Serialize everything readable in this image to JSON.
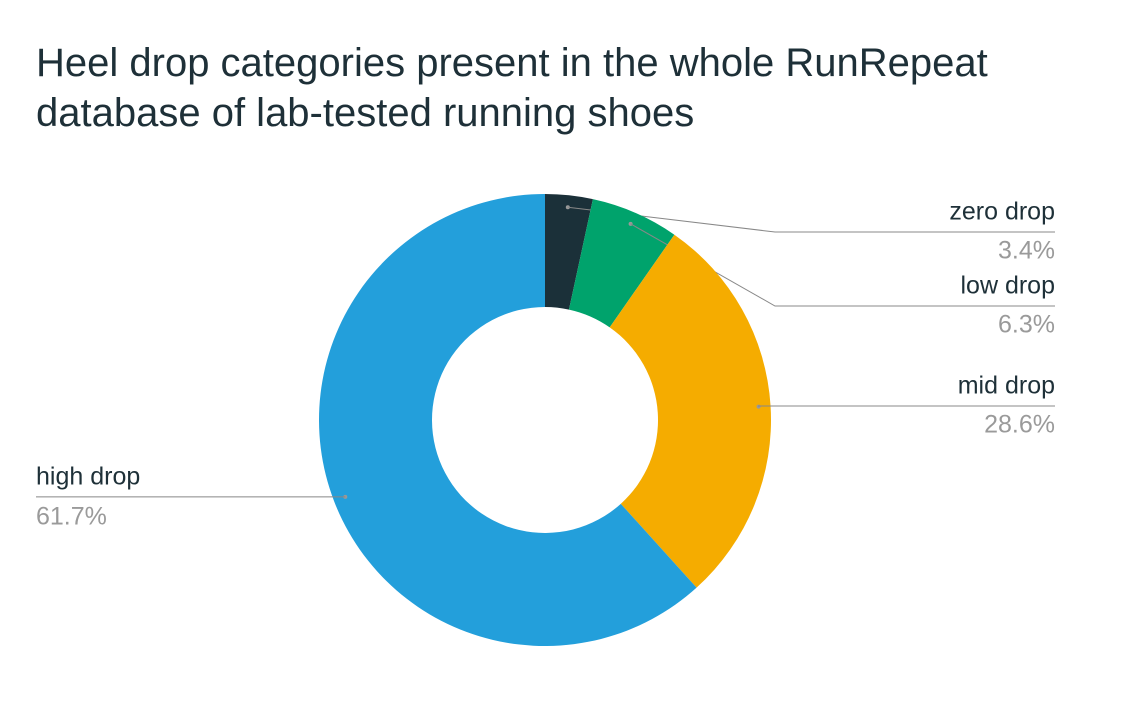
{
  "chart_data": {
    "type": "pie",
    "title": "Heel drop categories present in the whole RunRepeat database of lab-tested running shoes",
    "categories": [
      "zero drop",
      "low drop",
      "mid drop",
      "high drop"
    ],
    "values": [
      3.4,
      6.3,
      28.6,
      61.7
    ],
    "value_labels": [
      "3.4%",
      "6.3%",
      "28.6%",
      "61.7%"
    ],
    "colors": [
      "#1b3039",
      "#00a36c",
      "#f5ac00",
      "#239fdb"
    ]
  }
}
